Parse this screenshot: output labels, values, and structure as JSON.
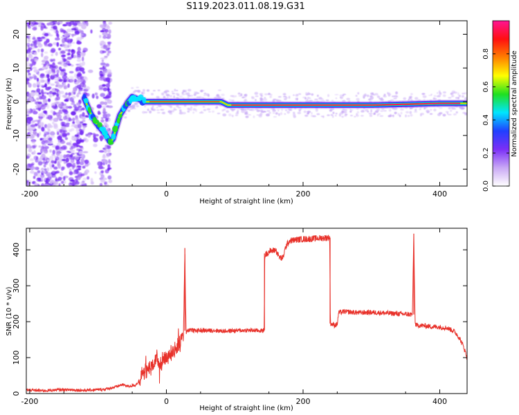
{
  "title": "S119.2023.011.08.19.G31",
  "chart_data": [
    {
      "type": "heatmap",
      "xlabel": "Height of straight line (km)",
      "ylabel": "Frequency (Hz)",
      "xlim": [
        -205,
        440
      ],
      "ylim": [
        -25,
        24
      ],
      "xticks": [
        -200,
        0,
        200,
        400
      ],
      "yticks": [
        -20,
        -10,
        0,
        10,
        20
      ],
      "ridge": {
        "x": [
          -120,
          -112,
          -104,
          -96,
          -88,
          -82,
          -78,
          -74,
          -68,
          -62,
          -56,
          -50,
          -44,
          -38,
          -32,
          -20,
          0,
          40,
          70,
          80,
          90,
          100,
          200,
          300,
          400,
          440
        ],
        "y": [
          1,
          -3,
          -6,
          -8,
          -10,
          -12,
          -11,
          -8,
          -4,
          -2,
          0,
          1.5,
          1,
          0.5,
          0,
          0,
          0,
          0,
          0,
          0,
          -1,
          -1,
          -1,
          -1,
          -0.5,
          -0.5
        ]
      },
      "colorbar": {
        "label": "Normalized spectral amplitude",
        "range": [
          0,
          1
        ],
        "ticks": [
          "0.0",
          "0.2",
          "0.4",
          "0.6",
          "0.8"
        ],
        "colors": [
          "#ffffff",
          "#c9a8f5",
          "#7b2ff7",
          "#2040ff",
          "#00e5ff",
          "#20e020",
          "#ffff00",
          "#ff8000",
          "#ff1010",
          "#ff1493"
        ]
      }
    },
    {
      "type": "line",
      "xlabel": "Height of straight line (km)",
      "ylabel": "SNR (10 * v/v)",
      "xlim": [
        -205,
        440
      ],
      "ylim": [
        0,
        460
      ],
      "xticks": [
        -200,
        0,
        200,
        400
      ],
      "yticks": [
        0,
        100,
        200,
        300,
        400
      ],
      "color": "#e8312a",
      "series": [
        {
          "x": [
            -205,
            -180,
            -150,
            -120,
            -90,
            -75,
            -65,
            -55,
            -45,
            -38,
            -32,
            -25,
            -18,
            -10,
            -5,
            0,
            5,
            10,
            15,
            20,
            25,
            27,
            28,
            29,
            30,
            35,
            40,
            50,
            60,
            70,
            80,
            100,
            120,
            140,
            143,
            144,
            150,
            160,
            165,
            170,
            175,
            180,
            190,
            200,
            210,
            220,
            230,
            239,
            240,
            244,
            246,
            250,
            252,
            260,
            280,
            300,
            320,
            340,
            360,
            362,
            363,
            364,
            366,
            370,
            380,
            390,
            400,
            410,
            420,
            425,
            430,
            435,
            440
          ],
          "y": [
            10,
            8,
            11,
            9,
            12,
            18,
            25,
            20,
            24,
            40,
            60,
            70,
            82,
            88,
            95,
            100,
            110,
            118,
            128,
            145,
            160,
            400,
            250,
            170,
            175,
            178,
            175,
            176,
            175,
            176,
            174,
            175,
            176,
            175,
            176,
            385,
            395,
            400,
            380,
            375,
            410,
            425,
            428,
            430,
            430,
            432,
            433,
            434,
            195,
            192,
            190,
            193,
            225,
            228,
            225,
            226,
            224,
            222,
            220,
            440,
            300,
            195,
            190,
            190,
            188,
            186,
            185,
            183,
            175,
            165,
            150,
            130,
            100
          ]
        }
      ]
    }
  ]
}
